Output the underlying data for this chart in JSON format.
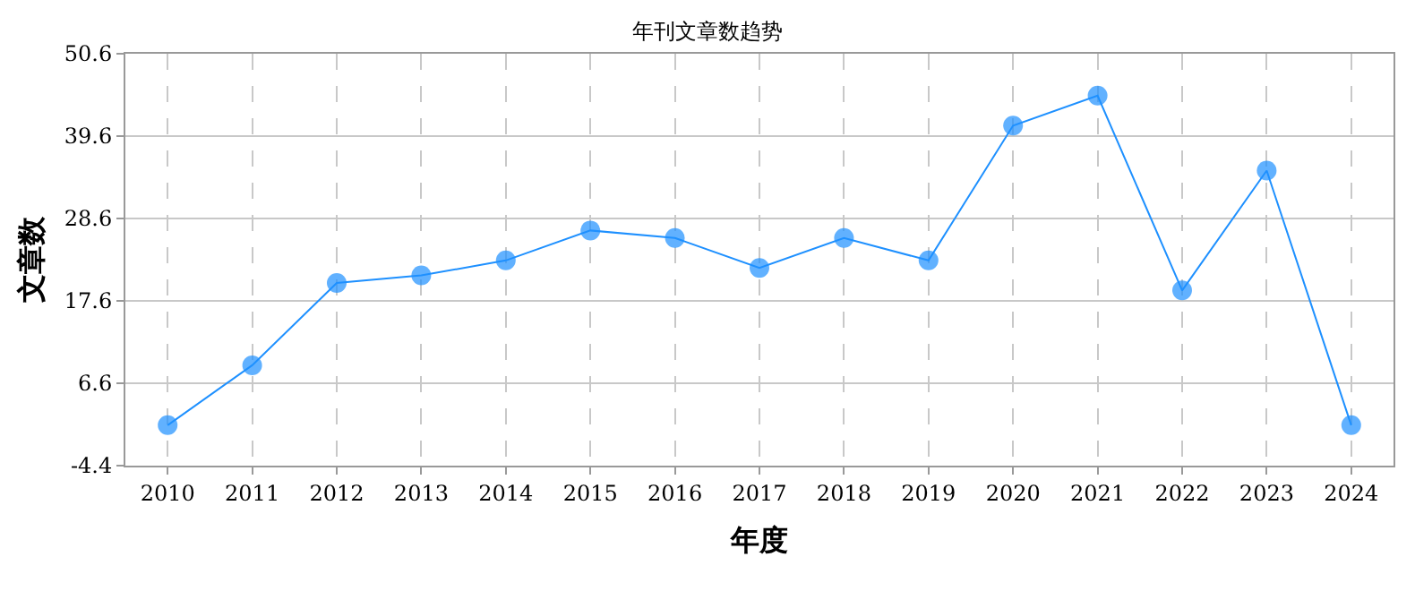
{
  "chart_data": {
    "type": "line",
    "title": "年刊文章数趋势",
    "xlabel": "年度",
    "ylabel": "文章数",
    "categories": [
      "2010",
      "2011",
      "2012",
      "2013",
      "2014",
      "2015",
      "2016",
      "2017",
      "2018",
      "2019",
      "2020",
      "2021",
      "2022",
      "2023",
      "2024"
    ],
    "series": [
      {
        "color": "#1e90ff",
        "values": [
          1,
          9,
          20,
          21,
          23,
          27,
          26,
          22,
          26,
          23,
          41,
          45,
          19,
          35,
          1
        ]
      }
    ],
    "ylim": [
      -4.4,
      50.6
    ],
    "yticks": [
      -4.4,
      6.6,
      17.6,
      28.6,
      39.6,
      50.6
    ],
    "grid": true,
    "marker": "circle",
    "line_style": "solid"
  }
}
